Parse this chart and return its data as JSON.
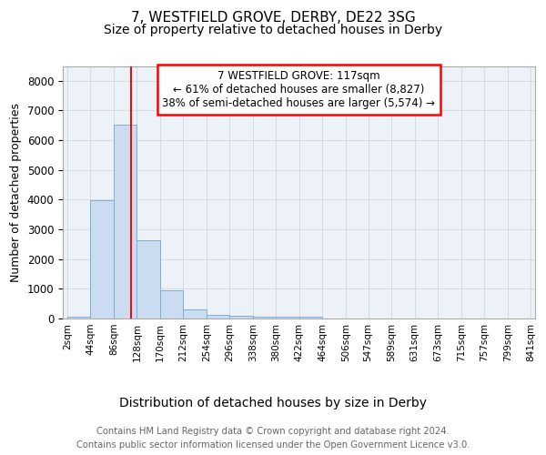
{
  "title1": "7, WESTFIELD GROVE, DERBY, DE22 3SG",
  "title2": "Size of property relative to detached houses in Derby",
  "xlabel": "Distribution of detached houses by size in Derby",
  "ylabel": "Number of detached properties",
  "annotation_line1": "7 WESTFIELD GROVE: 117sqm",
  "annotation_line2": "← 61% of detached houses are smaller (8,827)",
  "annotation_line3": "38% of semi-detached houses are larger (5,574) →",
  "footer1": "Contains HM Land Registry data © Crown copyright and database right 2024.",
  "footer2": "Contains public sector information licensed under the Open Government Licence v3.0.",
  "bar_edges": [
    2,
    44,
    86,
    128,
    170,
    212,
    254,
    296,
    338,
    380,
    422,
    464,
    506,
    547,
    589,
    631,
    673,
    715,
    757,
    799,
    841
  ],
  "bar_heights": [
    75,
    3980,
    6530,
    2620,
    960,
    310,
    130,
    105,
    70,
    55,
    55,
    0,
    0,
    0,
    0,
    0,
    0,
    0,
    0,
    0
  ],
  "bar_color": "#ccdcf0",
  "bar_edgecolor": "#7bafd4",
  "redline_x": 117,
  "ylim": [
    0,
    8500
  ],
  "yticks": [
    0,
    1000,
    2000,
    3000,
    4000,
    5000,
    6000,
    7000,
    8000
  ],
  "annotation_box_edgecolor": "red",
  "redline_color": "red",
  "grid_color": "#c8d0dc",
  "background_color": "#edf1f8",
  "title1_fontsize": 11,
  "title2_fontsize": 10,
  "annotation_fontsize": 8.5,
  "tick_label_fontsize": 7.5,
  "ylabel_fontsize": 9,
  "xlabel_fontsize": 10,
  "footer_fontsize": 7.2
}
